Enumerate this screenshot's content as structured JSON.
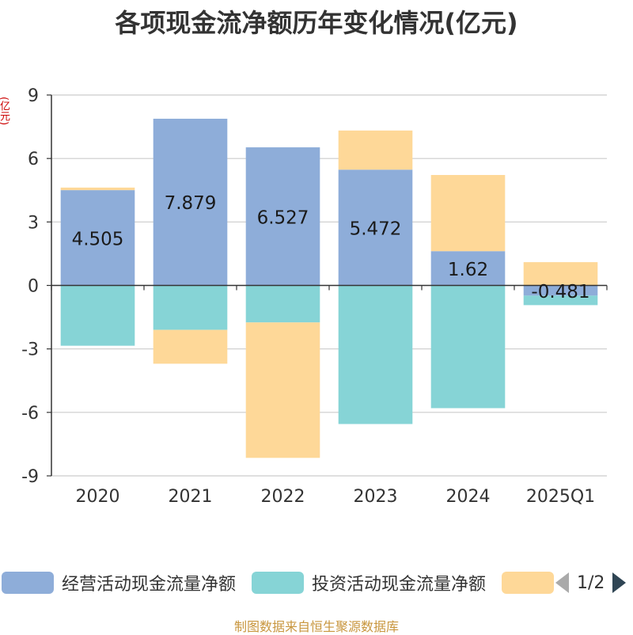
{
  "chart_data": {
    "type": "bar",
    "stacked": true,
    "title": "各项现金流净额历年变化情况(亿元)",
    "ylabel": "(亿元)",
    "categories": [
      "2020",
      "2021",
      "2022",
      "2023",
      "2024",
      "2025Q1"
    ],
    "ylim": [
      -9,
      9
    ],
    "yticks": [
      9,
      6,
      3,
      0,
      -3,
      -6,
      -9
    ],
    "grid": true,
    "legend_position": "bottom",
    "series": [
      {
        "name": "经营活动现金流量净额",
        "color": "#8eadd9",
        "values": [
          4.505,
          7.879,
          6.527,
          5.472,
          1.62,
          -0.481
        ],
        "show_labels": true
      },
      {
        "name": "投资活动现金流量净额",
        "color": "#86d4d6",
        "values": [
          -2.85,
          -2.1,
          -1.75,
          -6.55,
          -5.8,
          -0.45
        ],
        "show_labels": false
      },
      {
        "name": "",
        "color": "#fed898",
        "values": [
          0.12,
          -1.6,
          -6.4,
          1.85,
          3.6,
          1.1
        ],
        "show_labels": false
      }
    ]
  },
  "legend": {
    "items": [
      {
        "label": "经营活动现金流量净额",
        "color": "#8eadd9"
      },
      {
        "label": "投资活动现金流量净额",
        "color": "#86d4d6"
      },
      {
        "label": "",
        "color": "#fed898"
      }
    ],
    "page_indicator": "1/2"
  },
  "footer": {
    "source": "制图数据来自恒生聚源数据库"
  }
}
